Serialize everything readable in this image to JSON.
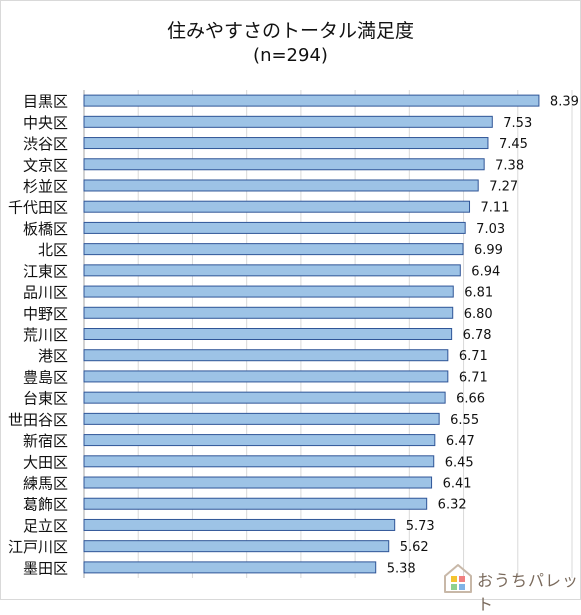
{
  "chart_data": {
    "type": "bar",
    "orientation": "horizontal",
    "title": "住みやすさのトータル満足度",
    "subtitle": "(n=294)",
    "categories": [
      "目黒区",
      "中央区",
      "渋谷区",
      "文京区",
      "杉並区",
      "千代田区",
      "板橋区",
      "北区",
      "江東区",
      "品川区",
      "中野区",
      "荒川区",
      "港区",
      "豊島区",
      "台東区",
      "世田谷区",
      "新宿区",
      "大田区",
      "練馬区",
      "葛飾区",
      "足立区",
      "江戸川区",
      "墨田区"
    ],
    "values": [
      8.39,
      7.53,
      7.45,
      7.38,
      7.27,
      7.11,
      7.03,
      6.99,
      6.94,
      6.81,
      6.8,
      6.78,
      6.71,
      6.71,
      6.66,
      6.55,
      6.47,
      6.45,
      6.41,
      6.32,
      5.73,
      5.62,
      5.38
    ],
    "value_labels": [
      "8.39",
      "7.53",
      "7.45",
      "7.38",
      "7.27",
      "7.11",
      "7.03",
      "6.99",
      "6.94",
      "6.81",
      "6.80",
      "6.78",
      "6.71",
      "6.71",
      "6.66",
      "6.55",
      "6.47",
      "6.45",
      "6.41",
      "6.32",
      "5.73",
      "5.62",
      "5.38"
    ],
    "xlim": [
      0,
      9
    ],
    "grid": true,
    "bar_color": "#9dc3e6",
    "bar_edge_color": "#2f5597"
  },
  "branding": {
    "logo_text": "おうちパレット"
  }
}
